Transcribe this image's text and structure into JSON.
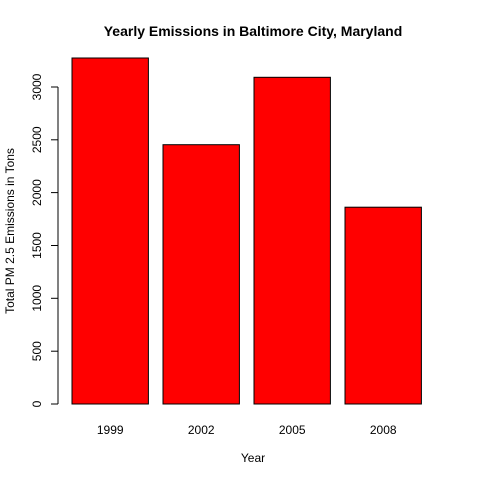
{
  "chart_data": {
    "type": "bar",
    "title": "Yearly Emissions in Baltimore City, Maryland",
    "xlabel": "Year",
    "ylabel": "Total PM 2.5 Emissions in Tons",
    "categories": [
      "1999",
      "2002",
      "2005",
      "2008"
    ],
    "values": [
      3274,
      2454,
      3091,
      1862
    ],
    "ylim": [
      0,
      3274
    ],
    "yticks": [
      0,
      500,
      1000,
      1500,
      2000,
      2500,
      3000
    ],
    "bar_color": "#ff0000",
    "bar_border_color": "#000000",
    "grid": false,
    "legend": "none"
  }
}
